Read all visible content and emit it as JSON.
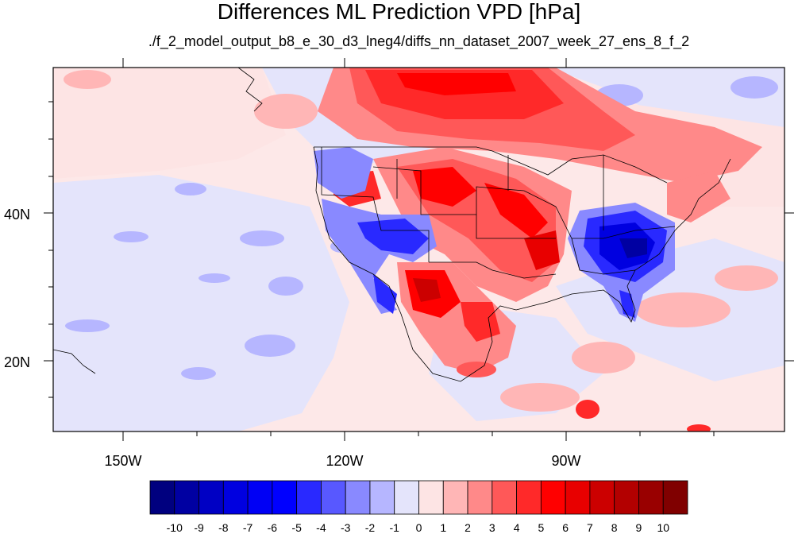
{
  "title": "Differences ML Prediction VPD [hPa]",
  "subtitle": "./f_2_model_output_b8_e_30_d3_lneg4/diffs_nn_dataset_2007_week_27_ens_8_f_2",
  "axes": {
    "lon_labels": [
      "150W",
      "120W",
      "90W"
    ],
    "lat_labels": [
      "40N",
      "20N"
    ]
  },
  "colorbar": {
    "colors": [
      "#00007f",
      "#0000a2",
      "#0000c4",
      "#0000e0",
      "#0000f5",
      "#0000ff",
      "#2929ff",
      "#5858ff",
      "#8989ff",
      "#b6b6ff",
      "#e4e4fb",
      "#fde4e4",
      "#ffb6b6",
      "#ff8989",
      "#ff5858",
      "#ff2929",
      "#ff0000",
      "#e80000",
      "#cc0000",
      "#b30000",
      "#990000",
      "#800000"
    ],
    "labels": [
      "-10",
      "-9",
      "-8",
      "-7",
      "-6",
      "-5",
      "-4",
      "-3",
      "-2",
      "-1",
      "0",
      "1",
      "2",
      "3",
      "4",
      "5",
      "6",
      "7",
      "8",
      "9",
      "10"
    ]
  }
}
